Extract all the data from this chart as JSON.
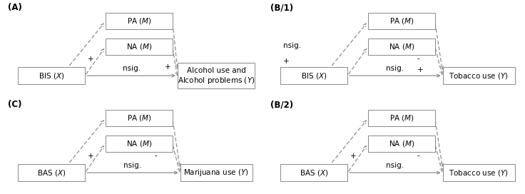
{
  "panels": [
    {
      "label": "(A)",
      "x_label": "BIS (",
      "x_label_italic": "X",
      "x_label_end": ")",
      "m1_label": "PA (",
      "m1_label_italic": "M",
      "m1_label_end": ")",
      "m2_label": "NA (",
      "m2_label_italic": "M",
      "m2_label_end": ")",
      "y_label_line1": "Alcohol use and",
      "y_label_line2": "Alcohol problems (",
      "y_label_italic": "Y",
      "y_label_end": ")",
      "y_two_lines": true,
      "x_to_m1_sign": "",
      "x_to_m2_sign": "+",
      "m1_to_y_sign": "",
      "m2_to_y_sign": "+",
      "x_to_y_sign": "nsig.",
      "x_to_m1_style": "dashed",
      "x_to_m2_style": "dashed",
      "m1_to_y_style": "dashed",
      "m2_to_y_style": "dashed",
      "x_to_y_style": "solid",
      "sign_x_m1_pos": "none",
      "sign_x_m2_pos": "left",
      "sign_m1_y_pos": "none",
      "sign_m2_y_pos": "right",
      "col": 0,
      "row": 0
    },
    {
      "label": "(B/1)",
      "x_label": "BIS (",
      "x_label_italic": "X",
      "x_label_end": ")",
      "m1_label": "PA (",
      "m1_label_italic": "M",
      "m1_label_end": ")",
      "m2_label": "NA (",
      "m2_label_italic": "M",
      "m2_label_end": ")",
      "y_label_line1": "Tobacco use (",
      "y_label_line2": "",
      "y_label_italic": "Y",
      "y_label_end": ")",
      "y_two_lines": false,
      "x_to_m1_sign": "nsig.",
      "x_to_m2_sign": "+",
      "m1_to_y_sign": "-",
      "m2_to_y_sign": "+",
      "x_to_y_sign": "nsig.",
      "x_to_m1_style": "dashed",
      "x_to_m2_style": "dashed",
      "m1_to_y_style": "dashed",
      "m2_to_y_style": "dashed",
      "x_to_y_style": "solid",
      "sign_x_m1_pos": "left_upper",
      "sign_x_m2_pos": "left_lower",
      "sign_m1_y_pos": "right_upper",
      "sign_m2_y_pos": "right_lower",
      "col": 1,
      "row": 0
    },
    {
      "label": "(C)",
      "x_label": "BAS (",
      "x_label_italic": "X",
      "x_label_end": ")",
      "m1_label": "PA (",
      "m1_label_italic": "M",
      "m1_label_end": ")",
      "m2_label": "NA (",
      "m2_label_italic": "M",
      "m2_label_end": ")",
      "y_label_line1": "Marijuana use (",
      "y_label_line2": "",
      "y_label_italic": "Y",
      "y_label_end": ")",
      "y_two_lines": false,
      "x_to_m1_sign": "",
      "x_to_m2_sign": "+",
      "m1_to_y_sign": "-",
      "m2_to_y_sign": "",
      "x_to_y_sign": "nsig.",
      "x_to_m1_style": "dashed",
      "x_to_m2_style": "dashed",
      "m1_to_y_style": "dashed",
      "m2_to_y_style": "dashed",
      "x_to_y_style": "solid",
      "sign_x_m1_pos": "none",
      "sign_x_m2_pos": "left",
      "sign_m1_y_pos": "right_upper",
      "sign_m2_y_pos": "none",
      "col": 0,
      "row": 1
    },
    {
      "label": "(B/2)",
      "x_label": "BAS (",
      "x_label_italic": "X",
      "x_label_end": ")",
      "m1_label": "PA (",
      "m1_label_italic": "M",
      "m1_label_end": ")",
      "m2_label": "NA (",
      "m2_label_italic": "M",
      "m2_label_end": ")",
      "y_label_line1": "Tobacco use (",
      "y_label_line2": "",
      "y_label_italic": "Y",
      "y_label_end": ")",
      "y_two_lines": false,
      "x_to_m1_sign": "",
      "x_to_m2_sign": "+",
      "m1_to_y_sign": "-",
      "m2_to_y_sign": "",
      "x_to_y_sign": "nsig.",
      "x_to_m1_style": "dashed",
      "x_to_m2_style": "dashed",
      "m1_to_y_style": "dashed",
      "m2_to_y_style": "dashed",
      "x_to_y_style": "solid",
      "sign_x_m1_pos": "none",
      "sign_x_m2_pos": "left",
      "sign_m1_y_pos": "right_upper",
      "sign_m2_y_pos": "none",
      "col": 1,
      "row": 1
    }
  ],
  "arrow_color": "#888888",
  "box_edge_color": "#888888",
  "bg_color": "#ffffff",
  "fontsize": 7.5,
  "bold_label_fontsize": 8.5
}
